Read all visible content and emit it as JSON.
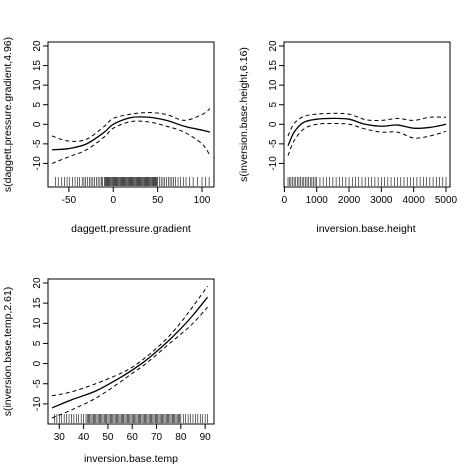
{
  "chart_data": [
    {
      "type": "line",
      "xlabel": "daggett.pressure.gradient",
      "ylabel": "s(daggett.pressure.gradient,4.96)",
      "xlim": [
        -69,
        109
      ],
      "ylim": [
        -15,
        20
      ],
      "xticks": [
        -50,
        0,
        50,
        100
      ],
      "yticks": [
        -10,
        -5,
        0,
        5,
        10,
        15,
        20
      ],
      "grid": false,
      "series": [
        {
          "role": "estimate",
          "x": [
            -69,
            -50,
            -30,
            -10,
            0,
            20,
            40,
            60,
            80,
            100,
            109
          ],
          "y": [
            -6.5,
            -6.2,
            -5.0,
            -2.0,
            0.0,
            1.7,
            1.8,
            1.0,
            -0.5,
            -1.5,
            -2.0
          ]
        },
        {
          "role": "upper",
          "x": [
            -69,
            -50,
            -30,
            -10,
            0,
            20,
            40,
            60,
            80,
            100,
            109
          ],
          "y": [
            -3.0,
            -4.3,
            -3.8,
            -0.5,
            1.5,
            2.6,
            3.0,
            2.5,
            1.0,
            2.5,
            4.0
          ]
        },
        {
          "role": "lower",
          "x": [
            -69,
            -50,
            -30,
            -10,
            0,
            20,
            40,
            60,
            80,
            100,
            109
          ],
          "y": [
            -10.0,
            -8.3,
            -6.5,
            -3.2,
            -1.0,
            0.7,
            0.6,
            -0.5,
            -2.0,
            -5.0,
            -8.0
          ]
        }
      ],
      "rug": [
        -65,
        -62,
        -58,
        -55,
        -52,
        -49,
        -46,
        -43,
        -40,
        -38,
        -35,
        -33,
        -31,
        -29,
        -27,
        -25,
        -23,
        -21,
        -19,
        -17,
        -15,
        -13,
        -12,
        -10,
        -9,
        -8,
        -7,
        -6,
        -5,
        -4,
        -3,
        -2,
        -1,
        0,
        1,
        2,
        3,
        4,
        5,
        6,
        7,
        8,
        9,
        10,
        11,
        12,
        13,
        14,
        15,
        16,
        17,
        18,
        19,
        20,
        21,
        22,
        23,
        24,
        25,
        26,
        27,
        28,
        29,
        30,
        31,
        32,
        33,
        34,
        35,
        36,
        37,
        38,
        39,
        40,
        41,
        42,
        43,
        44,
        45,
        46,
        47,
        48,
        49,
        50,
        52,
        54,
        56,
        58,
        60,
        62,
        64,
        66,
        68,
        70,
        73,
        76,
        79,
        82,
        86,
        90,
        95,
        100,
        104,
        108
      ]
    },
    {
      "type": "line",
      "xlabel": "inversion.base.height",
      "ylabel": "s(inversion.base.height,6.16)",
      "xlim": [
        111,
        5000
      ],
      "ylim": [
        -15,
        20
      ],
      "xticks": [
        0,
        1000,
        2000,
        3000,
        4000,
        5000
      ],
      "yticks": [
        -10,
        -5,
        0,
        5,
        10,
        15,
        20
      ],
      "grid": false,
      "series": [
        {
          "role": "estimate",
          "x": [
            111,
            300,
            600,
            1000,
            1500,
            2000,
            2500,
            3000,
            3500,
            4000,
            4500,
            5000
          ],
          "y": [
            -5.5,
            -2.0,
            0.5,
            1.3,
            1.5,
            1.3,
            0.0,
            -0.5,
            -0.2,
            -1.0,
            -0.8,
            0.0
          ]
        },
        {
          "role": "upper",
          "x": [
            111,
            300,
            600,
            1000,
            1500,
            2000,
            2500,
            3000,
            3500,
            4000,
            4500,
            5000
          ],
          "y": [
            -3.0,
            0.2,
            2.0,
            2.6,
            2.8,
            2.6,
            1.2,
            1.0,
            1.5,
            1.0,
            1.8,
            1.8
          ]
        },
        {
          "role": "lower",
          "x": [
            111,
            300,
            600,
            1000,
            1500,
            2000,
            2500,
            3000,
            3500,
            4000,
            4500,
            5000
          ],
          "y": [
            -8.0,
            -4.2,
            -1.2,
            0.0,
            0.2,
            0.0,
            -1.2,
            -2.0,
            -2.0,
            -3.5,
            -3.0,
            -1.8
          ]
        }
      ],
      "rug": [
        111,
        150,
        200,
        250,
        300,
        350,
        400,
        450,
        500,
        550,
        600,
        650,
        700,
        750,
        800,
        850,
        900,
        950,
        1000,
        1100,
        1200,
        1300,
        1400,
        1500,
        1600,
        1700,
        1800,
        1900,
        2000,
        2100,
        2200,
        2300,
        2400,
        2500,
        2600,
        2700,
        2800,
        2900,
        3000,
        3100,
        3200,
        3300,
        3400,
        3500,
        3600,
        3700,
        3800,
        3900,
        4000,
        4100,
        4200,
        4300,
        4400,
        4500,
        4600,
        4700,
        4800,
        4900,
        5000
      ]
    },
    {
      "type": "line",
      "xlabel": "inversion.base.temp",
      "ylabel": "s(inversion.base.temp,2.61)",
      "xlim": [
        27,
        92
      ],
      "ylim": [
        -14,
        20
      ],
      "xticks": [
        30,
        40,
        50,
        60,
        70,
        80,
        90
      ],
      "yticks": [
        -10,
        -5,
        0,
        5,
        10,
        15,
        20
      ],
      "grid": false,
      "series": [
        {
          "role": "estimate",
          "x": [
            27,
            35,
            45,
            55,
            60,
            65,
            70,
            75,
            80,
            85,
            91
          ],
          "y": [
            -11.0,
            -9.0,
            -6.8,
            -3.5,
            -1.6,
            0.5,
            3.0,
            5.7,
            8.7,
            12.0,
            16.5
          ]
        },
        {
          "role": "upper",
          "x": [
            27,
            35,
            45,
            55,
            60,
            65,
            70,
            75,
            80,
            85,
            91
          ],
          "y": [
            -8.0,
            -7.0,
            -5.0,
            -2.5,
            -0.9,
            1.3,
            3.8,
            6.7,
            10.2,
            14.2,
            19.2
          ]
        },
        {
          "role": "lower",
          "x": [
            27,
            35,
            45,
            55,
            60,
            65,
            70,
            75,
            80,
            85,
            91
          ],
          "y": [
            -13.5,
            -11.5,
            -8.6,
            -4.6,
            -2.4,
            -0.3,
            2.2,
            4.8,
            7.3,
            10.0,
            14.0
          ]
        }
      ],
      "rug": [
        28,
        29,
        30,
        31,
        32,
        33,
        34,
        35,
        36,
        37,
        38,
        39,
        40,
        41,
        41.5,
        42,
        42.5,
        43,
        43.5,
        44,
        44.5,
        45,
        45.5,
        46,
        46.5,
        47,
        47.5,
        48,
        48.5,
        49,
        49.5,
        50,
        50.5,
        51,
        51.5,
        52,
        52.5,
        53,
        53.5,
        54,
        54.5,
        55,
        55.5,
        56,
        56.5,
        57,
        57.5,
        58,
        58.5,
        59,
        59.5,
        60,
        60.5,
        61,
        61.5,
        62,
        62.5,
        63,
        63.5,
        64,
        64.5,
        65,
        65.5,
        66,
        66.5,
        67,
        67.5,
        68,
        68.5,
        69,
        69.5,
        70,
        70.5,
        71,
        71.5,
        72,
        72.5,
        73,
        73.5,
        74,
        74.5,
        75,
        75.5,
        76,
        76.5,
        77,
        77.5,
        78,
        78.5,
        79,
        79.5,
        80,
        81,
        82,
        83,
        84,
        85,
        86,
        87,
        88,
        89,
        90,
        91
      ]
    }
  ]
}
